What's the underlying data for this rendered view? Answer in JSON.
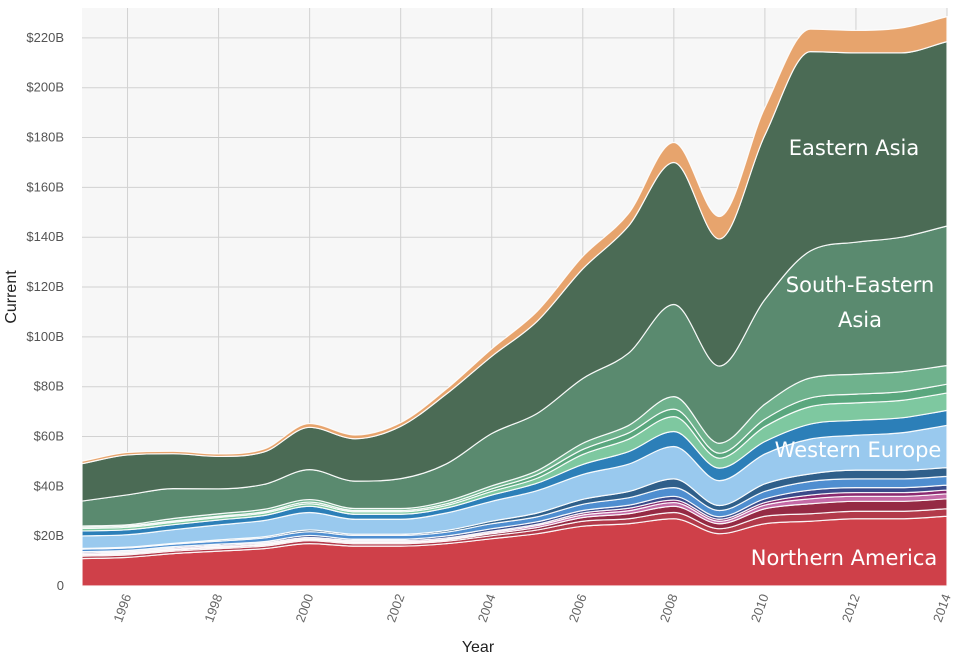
{
  "chart_data": {
    "type": "area",
    "stacked": true,
    "xlabel": "Year",
    "ylabel": "Current",
    "x": [
      1995,
      1996,
      1997,
      1998,
      1999,
      2000,
      2001,
      2002,
      2003,
      2004,
      2005,
      2006,
      2007,
      2008,
      2009,
      2010,
      2011,
      2012,
      2013,
      2014
    ],
    "x_ticks": [
      "1996",
      "1998",
      "2000",
      "2002",
      "2004",
      "2006",
      "2008",
      "2010",
      "2012",
      "2014"
    ],
    "ylim": [
      0,
      232
    ],
    "y_ticks": [
      "0",
      "$20B",
      "$40B",
      "$60B",
      "$80B",
      "$100B",
      "$120B",
      "$140B",
      "$160B",
      "$180B",
      "$200B",
      "$220B"
    ],
    "grid": true,
    "series": [
      {
        "name": "Northern America",
        "color": "#cf4049",
        "values": [
          11,
          11.5,
          13,
          14,
          15,
          17,
          16,
          16,
          17,
          19,
          21,
          24,
          25,
          27,
          21,
          25,
          26,
          27,
          27,
          28
        ]
      },
      {
        "name": "",
        "color": "#b23a4a",
        "values": [
          1,
          1,
          1,
          1,
          1,
          1.2,
          1,
          1,
          1,
          1.2,
          1.5,
          2,
          2,
          2.5,
          2,
          3,
          3,
          3,
          3,
          3
        ]
      },
      {
        "name": "",
        "color": "#952a44",
        "values": [
          0.5,
          0.5,
          0.5,
          0.5,
          0.5,
          0.5,
          0.5,
          0.5,
          0.5,
          0.8,
          1,
          1.5,
          2,
          2.5,
          2,
          3,
          4,
          4,
          4,
          4
        ]
      },
      {
        "name": "",
        "color": "#c46aa6",
        "values": [
          0.3,
          0.3,
          0.3,
          0.3,
          0.3,
          0.3,
          0.3,
          0.3,
          0.3,
          0.5,
          0.8,
          1,
          1.2,
          1.5,
          1,
          1.5,
          2,
          2,
          2,
          2
        ]
      },
      {
        "name": "",
        "color": "#8a2a70",
        "values": [
          0.5,
          0.5,
          0.5,
          0.5,
          0.5,
          0.5,
          0.5,
          0.5,
          0.5,
          0.5,
          0.5,
          0.8,
          1,
          1,
          0.8,
          1,
          1.5,
          1.5,
          1.5,
          1.5
        ]
      },
      {
        "name": "",
        "color": "#3a4a8a",
        "values": [
          0.5,
          0.5,
          0.5,
          0.5,
          0.5,
          0.8,
          0.5,
          0.5,
          0.8,
          1,
          1,
          1,
          1.2,
          1.5,
          1,
          1.5,
          2,
          2,
          2,
          2
        ]
      },
      {
        "name": "",
        "color": "#4f8ed0",
        "values": [
          1,
          1,
          1,
          1.2,
          1.5,
          1.5,
          1.5,
          1.5,
          1.5,
          2,
          2,
          2.5,
          3,
          3.5,
          2.5,
          3,
          3.5,
          3.5,
          3.5,
          3.5
        ]
      },
      {
        "name": "",
        "color": "#2f5f8a",
        "values": [
          0.3,
          0.3,
          0.3,
          0.5,
          0.5,
          0.7,
          0.5,
          0.5,
          0.7,
          1,
          1.5,
          2,
          2.5,
          3.5,
          2,
          3,
          3,
          3.5,
          3.5,
          3.5
        ]
      },
      {
        "name": "Western Europe",
        "color": "#99c9ee",
        "values": [
          5,
          5,
          5.5,
          6,
          6.5,
          7,
          6,
          6,
          7,
          8,
          9,
          10,
          11,
          13,
          10,
          12,
          14,
          14,
          15,
          17
        ]
      },
      {
        "name": "",
        "color": "#2c7fb8",
        "values": [
          2,
          2,
          2,
          2,
          2,
          2.5,
          2,
          2,
          2,
          2.5,
          3,
          4,
          5,
          6,
          5,
          5,
          6,
          6,
          6,
          6
        ]
      },
      {
        "name": "",
        "color": "#7ec8a0",
        "values": [
          1,
          1,
          1,
          1,
          1,
          1,
          1,
          1,
          1,
          1.5,
          2,
          4,
          5,
          6,
          4,
          6,
          7,
          7,
          7,
          7
        ]
      },
      {
        "name": "",
        "color": "#5aa77e",
        "values": [
          0.5,
          0.5,
          0.5,
          0.5,
          0.5,
          0.7,
          0.5,
          0.5,
          0.7,
          1,
          1.5,
          2,
          2.5,
          3,
          2,
          3,
          3.5,
          3.5,
          3.5,
          3.5
        ]
      },
      {
        "name": "",
        "color": "#6fb28d",
        "values": [
          0.5,
          0.5,
          1,
          1,
          1,
          1,
          0.8,
          0.8,
          1,
          1.2,
          1.5,
          2.5,
          3,
          5,
          4,
          6,
          8,
          8,
          8,
          7.5
        ]
      },
      {
        "name": "South-Eastern Asia",
        "color": "#5a8a6f",
        "values": [
          10,
          12,
          12,
          10,
          10,
          12,
          11,
          12,
          15,
          21,
          23,
          26,
          29,
          37,
          31,
          42,
          51,
          53,
          54,
          56
        ]
      },
      {
        "name": "Eastern Asia",
        "color": "#4b6b55",
        "values": [
          15,
          16,
          14,
          13,
          13,
          17,
          17,
          21,
          28,
          31,
          37,
          44,
          51,
          57,
          51,
          66,
          80,
          76,
          74,
          74
        ]
      },
      {
        "name": "",
        "color": "#e7a46d",
        "values": [
          1,
          1,
          1,
          1,
          1.2,
          1.5,
          1.5,
          1.5,
          2,
          3,
          4,
          5,
          5,
          8,
          9,
          11,
          9,
          9,
          10,
          10
        ]
      }
    ],
    "annotations": [
      "Eastern Asia",
      "South-Eastern",
      "Asia",
      "Western Europe",
      "Northern America"
    ]
  }
}
